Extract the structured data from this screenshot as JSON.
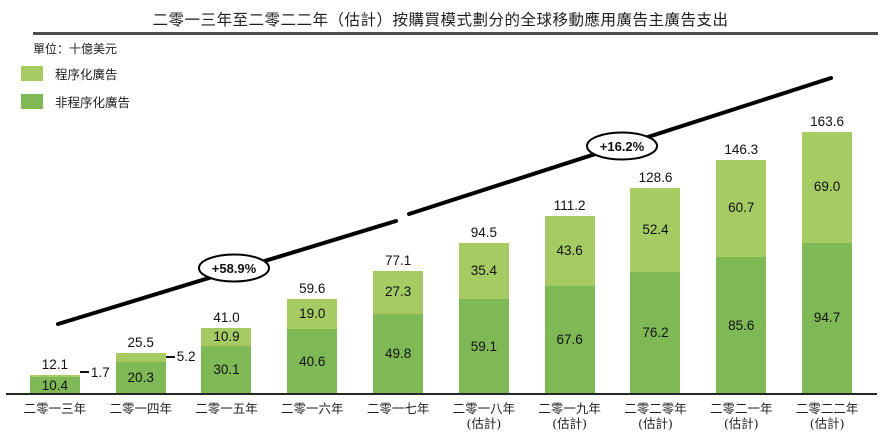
{
  "chart": {
    "title": "二零一三年至二零二二年（估計）按購買模式劃分的全球移動應用廣告主廣告支出",
    "unit_label": "單位：十億美元",
    "legend": [
      {
        "label": "程序化廣告",
        "color": "#a5cb62"
      },
      {
        "label": "非程序化廣告",
        "color": "#7fb956"
      }
    ],
    "annotations": [
      {
        "text": "+58.9%"
      },
      {
        "text": "+16.2%"
      }
    ]
  },
  "chart_data": {
    "type": "bar",
    "stacked": true,
    "title": "二零一三年至二零二二年（估計）按購買模式劃分的全球移動應用廣告主廣告支出",
    "ylabel": "十億美元",
    "xlabel": "",
    "ylim": [
      0,
      170
    ],
    "grid": false,
    "legend_position": "top-left",
    "categories": [
      {
        "label": "二零一三年",
        "sublabel": ""
      },
      {
        "label": "二零一四年",
        "sublabel": ""
      },
      {
        "label": "二零一五年",
        "sublabel": ""
      },
      {
        "label": "二零一六年",
        "sublabel": ""
      },
      {
        "label": "二零一七年",
        "sublabel": ""
      },
      {
        "label": "二零一八年",
        "sublabel": "(估計)"
      },
      {
        "label": "二零一九年",
        "sublabel": "(估計)"
      },
      {
        "label": "二零二零年",
        "sublabel": "(估計)"
      },
      {
        "label": "二零二一年",
        "sublabel": "(估計)"
      },
      {
        "label": "二零二二年",
        "sublabel": "(估計)"
      }
    ],
    "series": [
      {
        "name": "程序化廣告",
        "color": "#a5cb62",
        "values": [
          1.7,
          5.2,
          10.9,
          19.0,
          27.3,
          35.4,
          43.6,
          52.4,
          60.7,
          69.0
        ]
      },
      {
        "name": "非程序化廣告",
        "color": "#7fb956",
        "values": [
          10.4,
          20.3,
          30.1,
          40.6,
          49.8,
          59.1,
          67.6,
          76.2,
          85.6,
          94.7
        ]
      }
    ],
    "totals": [
      12.1,
      25.5,
      41.0,
      59.6,
      77.1,
      94.5,
      111.2,
      128.6,
      146.3,
      163.6
    ],
    "trend_annotations": [
      "+58.9%",
      "+16.2%"
    ]
  }
}
